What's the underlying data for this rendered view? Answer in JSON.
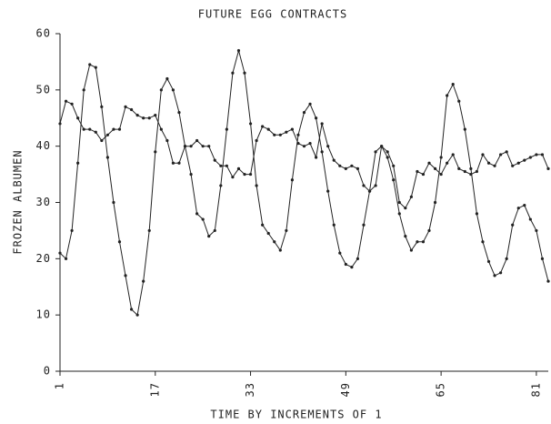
{
  "chart_data": {
    "type": "line",
    "title": "FUTURE EGG CONTRACTS",
    "xlabel": "TIME BY INCREMENTS OF 1",
    "ylabel": "FROZEN ALBUMEN",
    "x": [
      1,
      2,
      3,
      4,
      5,
      6,
      7,
      8,
      9,
      10,
      11,
      12,
      13,
      14,
      15,
      16,
      17,
      18,
      19,
      20,
      21,
      22,
      23,
      24,
      25,
      26,
      27,
      28,
      29,
      30,
      31,
      32,
      33,
      34,
      35,
      36,
      37,
      38,
      39,
      40,
      41,
      42,
      43,
      44,
      45,
      46,
      47,
      48,
      49,
      50,
      51,
      52,
      53,
      54,
      55,
      56,
      57,
      58,
      59,
      60,
      61,
      62,
      63,
      64,
      65,
      66,
      67,
      68,
      69,
      70,
      71,
      72,
      73,
      74,
      75,
      76,
      77,
      78,
      79,
      80,
      81,
      82,
      83
    ],
    "series": [
      {
        "color": "#222222",
        "values": [
          21,
          20,
          25,
          37,
          50,
          54.5,
          54,
          47,
          38,
          30,
          23,
          17,
          11,
          10,
          16,
          25,
          39,
          50,
          52,
          50,
          46,
          40,
          35,
          28,
          27,
          24,
          25,
          33,
          43,
          53,
          57,
          53,
          44,
          33,
          26,
          24.5,
          23,
          21.5,
          25,
          34,
          42,
          46,
          47.5,
          45,
          39,
          32,
          26,
          21,
          19,
          18.5,
          20,
          26,
          32,
          39,
          40,
          38,
          34,
          28,
          24,
          21.5,
          23,
          23,
          25,
          30,
          38,
          49,
          51,
          48,
          43,
          36,
          28,
          23,
          19.5,
          17,
          17.5,
          20,
          26,
          29,
          29.5,
          27,
          25,
          20,
          16
        ]
      },
      {
        "color": "#222222",
        "values": [
          44,
          48,
          47.5,
          45,
          43,
          43,
          42.5,
          41,
          42,
          43,
          43,
          47,
          46.5,
          45.5,
          45,
          45,
          45.5,
          43,
          41,
          37,
          37,
          40,
          40,
          41,
          40,
          40,
          37.5,
          36.5,
          36.5,
          34.5,
          36,
          35,
          35,
          41,
          43.5,
          43,
          42,
          42,
          42.5,
          43,
          40.5,
          40,
          40.5,
          38,
          44,
          40,
          37.5,
          36.5,
          36,
          36.5,
          36,
          33,
          32,
          33,
          40,
          39,
          36.5,
          30,
          29,
          31,
          35.5,
          35,
          37,
          36,
          35,
          37,
          38.5,
          36,
          35.5,
          35,
          35.5,
          38.5,
          37,
          36.5,
          38.5,
          39,
          36.5,
          37,
          37.5,
          38,
          38.5,
          38.5,
          36
        ]
      }
    ],
    "xlim": [
      1,
      83
    ],
    "xticks": [
      1,
      17,
      33,
      49,
      65,
      81
    ],
    "ylim": [
      0,
      60
    ],
    "yticks": [
      0,
      10,
      20,
      30,
      40,
      50,
      60
    ],
    "grid": false
  }
}
